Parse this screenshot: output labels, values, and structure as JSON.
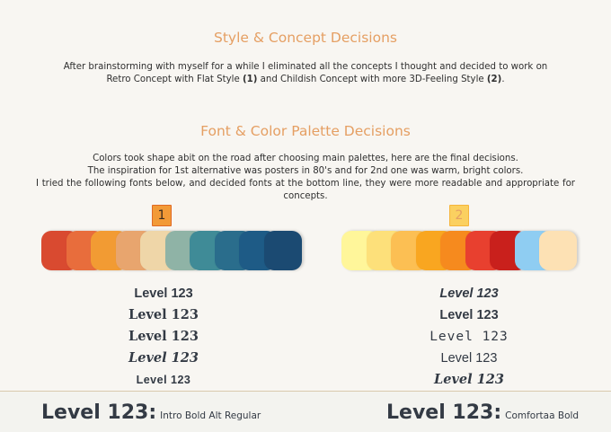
{
  "section1": {
    "title": "Style & Concept Decisions",
    "line1": "After brainstorming with myself for a while I eliminated all the concepts I thought and decided to work on",
    "line2_a": "Retro Concept with Flat Style ",
    "line2_b": "(1)",
    "line2_c": " and Childish Concept with more 3D-Feeling Style ",
    "line2_d": "(2)",
    "line2_e": "."
  },
  "section2": {
    "title": "Font & Color Palette Decisions",
    "line1": "Colors took shape abit on the road after choosing main palettes, here are the final decisions.",
    "line2": "The inspiration for 1st alternative was posters in 80's and for 2nd one was warm, bright colors.",
    "line3": "I tried the following fonts below, and decided fonts at the bottom line, they were more readable and appropriate for concepts."
  },
  "alt1": {
    "badge": "1",
    "palette": [
      "#d94a30",
      "#e86d3c",
      "#f29b33",
      "#e8a56e",
      "#efd6a8",
      "#8fb3a6",
      "#3f8b97",
      "#2a6d8c",
      "#1e5b86",
      "#1b4a72"
    ],
    "samples": [
      "Level 123",
      "Level 123",
      "Level 123",
      "Level 123",
      "Level 123"
    ],
    "final_sample": "Level 123:",
    "final_font": "Intro Bold Alt Regular"
  },
  "alt2": {
    "badge": "2",
    "palette": [
      "#fff69a",
      "#fde07a",
      "#fcbf53",
      "#f9a620",
      "#f68a1e",
      "#e8402f",
      "#c9201c",
      "#8fcdf2",
      "#fde1b4"
    ],
    "samples": [
      "Level 123",
      "Level 123",
      "Level 123",
      "Level 123",
      "Level 123"
    ],
    "final_sample": "Level 123:",
    "final_font": "Comfortaa Bold"
  }
}
